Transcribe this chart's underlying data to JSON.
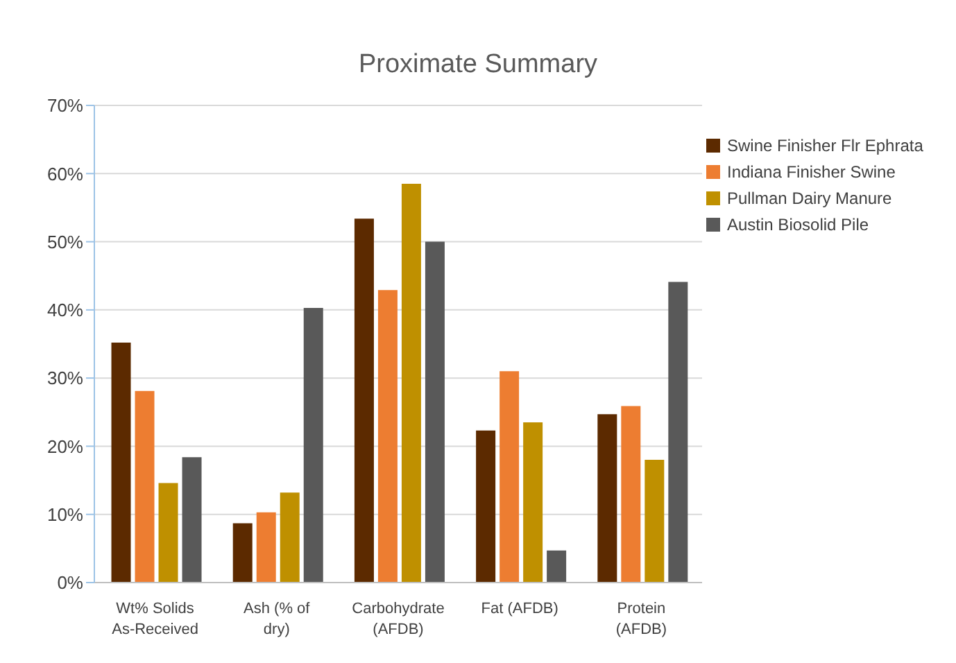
{
  "chart_data": {
    "type": "bar",
    "title": "Proximate Summary",
    "categories": [
      "Wt% Solids As-Received",
      "Ash (% of dry)",
      "Carbohydrate (AFDB)",
      "Fat (AFDB)",
      "Protein (AFDB)"
    ],
    "series": [
      {
        "name": "Swine Finisher Flr Ephrata",
        "color": "#5c2a00",
        "values": [
          35.2,
          8.7,
          53.4,
          22.3,
          24.7
        ]
      },
      {
        "name": "Indiana Finisher Swine",
        "color": "#ed7d31",
        "values": [
          28.1,
          10.3,
          42.9,
          31,
          25.9
        ]
      },
      {
        "name": "Pullman Dairy Manure",
        "color": "#bf9000",
        "values": [
          14.6,
          13.2,
          58.5,
          23.5,
          18
        ]
      },
      {
        "name": "Austin Biosolid Pile",
        "color": "#595959",
        "values": [
          18.4,
          40.3,
          50,
          4.7,
          44.1
        ]
      }
    ],
    "ylim": [
      0,
      70
    ],
    "yticks": [
      {
        "value": 0,
        "label": "0%"
      },
      {
        "value": 10,
        "label": "10%"
      },
      {
        "value": 20,
        "label": "20%"
      },
      {
        "value": 30,
        "label": "30%"
      },
      {
        "value": 40,
        "label": "40%"
      },
      {
        "value": 50,
        "label": "50%"
      },
      {
        "value": 60,
        "label": "60%"
      },
      {
        "value": 70,
        "label": "70%"
      }
    ],
    "grid": "y",
    "legend": "right"
  }
}
